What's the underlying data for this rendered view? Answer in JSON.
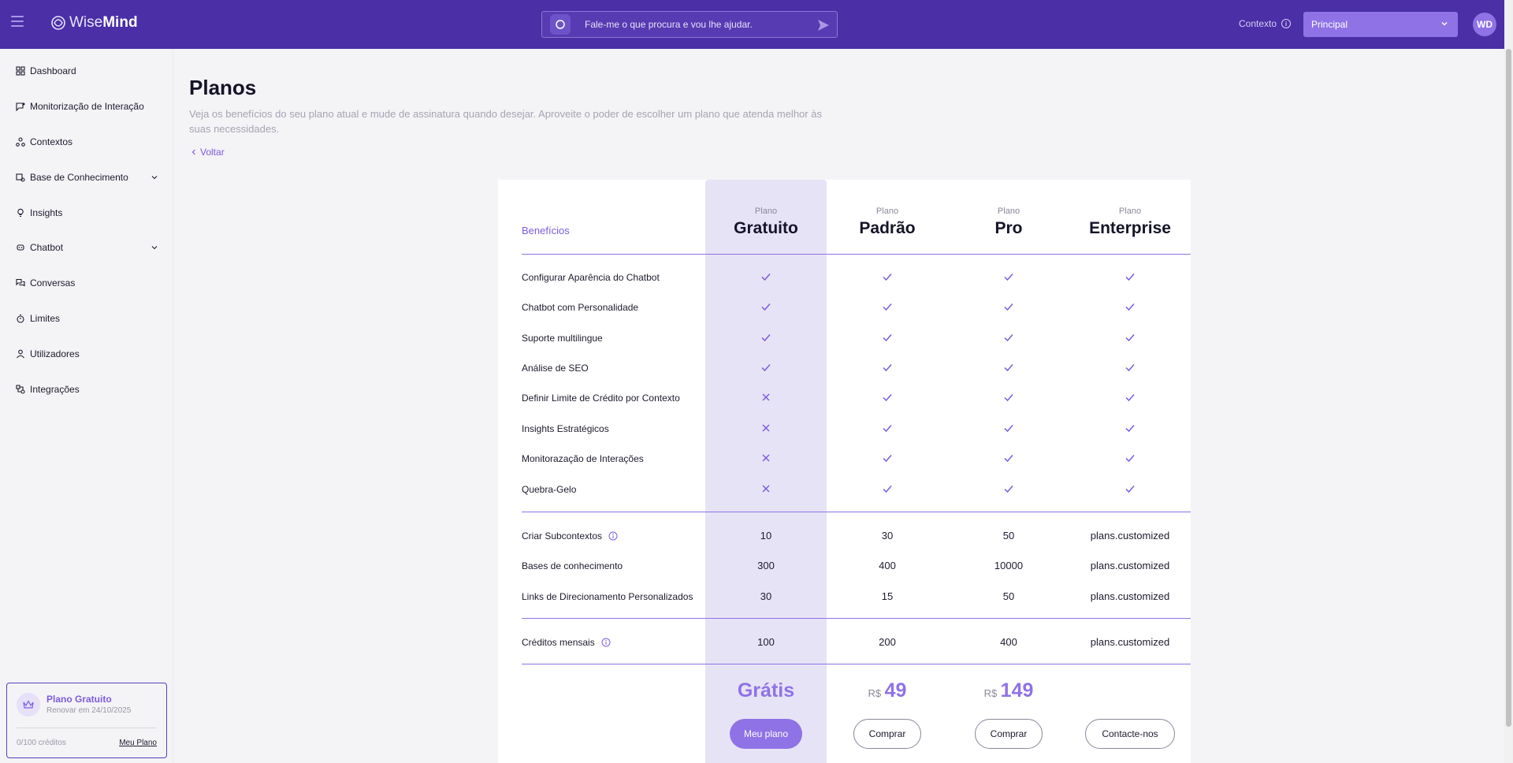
{
  "brand": {
    "part1": "Wise",
    "part2": "Mind"
  },
  "search": {
    "placeholder": "Fale-me o que procura e vou lhe ajudar."
  },
  "header": {
    "context_label": "Contexto",
    "context_value": "Principal",
    "avatar_initials": "WD"
  },
  "sidebar": {
    "items": [
      {
        "label": "Dashboard",
        "icon": "dashboard-icon"
      },
      {
        "label": "Monitorização de Interação",
        "icon": "monitor-icon"
      },
      {
        "label": "Contextos",
        "icon": "contexts-icon"
      },
      {
        "label": "Base de Conhecimento",
        "icon": "knowledge-icon",
        "expandable": true
      },
      {
        "label": "Insights",
        "icon": "lightbulb-icon"
      },
      {
        "label": "Chatbot",
        "icon": "chatbot-icon",
        "expandable": true
      },
      {
        "label": "Conversas",
        "icon": "conversations-icon"
      },
      {
        "label": "Limites",
        "icon": "timer-icon"
      },
      {
        "label": "Utilizadores",
        "icon": "user-icon"
      },
      {
        "label": "Integrações",
        "icon": "integrations-icon"
      }
    ],
    "plan_card": {
      "title": "Plano Gratuito",
      "renewal": "Renovar em 24/10/2025",
      "credits": "0/100 créditos",
      "link": "Meu Plano"
    }
  },
  "page": {
    "title": "Planos",
    "description": "Veja os benefícios do seu plano atual e mude de assinatura quando desejar. Aproveite o poder de escolher um plano que atenda melhor às suas necessidades.",
    "back": "Voltar"
  },
  "plans_table": {
    "benefits_label": "Benefícios",
    "plan_prefix": "Plano",
    "plans": [
      {
        "name": "Gratuito",
        "price_label": "Grátis",
        "button": "Meu plano"
      },
      {
        "name": "Padrão",
        "currency": "R$",
        "price": "49",
        "button": "Comprar"
      },
      {
        "name": "Pro",
        "currency": "R$",
        "price": "149",
        "button": "Comprar"
      },
      {
        "name": "Enterprise",
        "button": "Contacte-nos"
      }
    ],
    "feature_rows": [
      {
        "label": "Configurar Aparência do Chatbot",
        "values": [
          true,
          true,
          true,
          true
        ]
      },
      {
        "label": "Chatbot com Personalidade",
        "values": [
          true,
          true,
          true,
          true
        ]
      },
      {
        "label": "Suporte multilingue",
        "values": [
          true,
          true,
          true,
          true
        ]
      },
      {
        "label": "Análise de SEO",
        "values": [
          true,
          true,
          true,
          true
        ]
      },
      {
        "label": "Definir Limite de Crédito por Contexto",
        "values": [
          false,
          true,
          true,
          true
        ]
      },
      {
        "label": "Insights Estratégicos",
        "values": [
          false,
          true,
          true,
          true
        ]
      },
      {
        "label": "Monitorazação de Interações",
        "values": [
          false,
          true,
          true,
          true
        ]
      },
      {
        "label": "Quebra-Gelo",
        "values": [
          false,
          true,
          true,
          true
        ]
      }
    ],
    "limit_rows": [
      {
        "label": "Criar Subcontextos",
        "info": true,
        "values": [
          "10",
          "30",
          "50",
          "plans.customized"
        ]
      },
      {
        "label": "Bases de conhecimento",
        "values": [
          "300",
          "400",
          "10000",
          "plans.customized"
        ]
      },
      {
        "label": "Links de Direcionamento Personalizados",
        "values": [
          "30",
          "15",
          "50",
          "plans.customized"
        ]
      }
    ],
    "credit_rows": [
      {
        "label": "Créditos mensais",
        "info": true,
        "values": [
          "100",
          "200",
          "400",
          "plans.customized"
        ]
      }
    ]
  },
  "colors": {
    "topbar": "#4a2fa6",
    "accent": "#8f72e6",
    "highlight_column": "#e7e3f6"
  }
}
